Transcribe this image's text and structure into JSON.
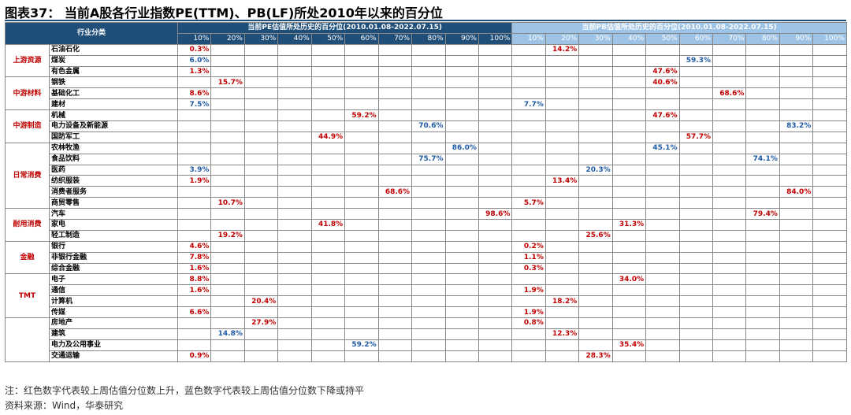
{
  "title": "图表37： 当前A股各行业指数PE(TTM)、PB(LF)所处2010年以来的百分位",
  "header": {
    "category": "行业分类",
    "pe_group": "当前PE估值所处历史的百分位(2010.01.08-2022.07.15)",
    "pb_group": "当前PB估值所处历史的百分位(2010.01.08-2022.07.15)",
    "ticks": [
      "10%",
      "20%",
      "30%",
      "40%",
      "50%",
      "60%",
      "70%",
      "80%",
      "90%",
      "100%"
    ]
  },
  "colors": {
    "increase": "#c00000",
    "decrease": "#1f5aa6",
    "header": "#1f4e79",
    "pb_header": "#9dc3e6"
  },
  "sections": [
    {
      "name": "上游资源",
      "rows": [
        {
          "industry": "石油石化",
          "pe": {
            "value": "0.3%",
            "color": "red"
          },
          "pb": {
            "value": "14.2%",
            "color": "red"
          }
        },
        {
          "industry": "煤炭",
          "pe": {
            "value": "6.0%",
            "color": "blue"
          },
          "pb": {
            "value": "59.3%",
            "color": "blue"
          }
        },
        {
          "industry": "有色金属",
          "pe": {
            "value": "1.3%",
            "color": "red"
          },
          "pb": {
            "value": "47.6%",
            "color": "red"
          }
        }
      ]
    },
    {
      "name": "中游材料",
      "rows": [
        {
          "industry": "钢铁",
          "pe": {
            "value": "15.7%",
            "color": "red"
          },
          "pb": {
            "value": "40.6%",
            "color": "red"
          }
        },
        {
          "industry": "基础化工",
          "pe": {
            "value": "8.6%",
            "color": "red"
          },
          "pb": {
            "value": "68.6%",
            "color": "red"
          }
        },
        {
          "industry": "建材",
          "pe": {
            "value": "7.5%",
            "color": "blue"
          },
          "pb": {
            "value": "7.7%",
            "color": "blue"
          }
        }
      ]
    },
    {
      "name": "中游制造",
      "rows": [
        {
          "industry": "机械",
          "pe": {
            "value": "59.2%",
            "color": "red"
          },
          "pb": {
            "value": "47.6%",
            "color": "red"
          }
        },
        {
          "industry": "电力设备及新能源",
          "pe": {
            "value": "70.6%",
            "color": "blue"
          },
          "pb": {
            "value": "83.2%",
            "color": "blue"
          }
        },
        {
          "industry": "国防军工",
          "pe": {
            "value": "44.9%",
            "color": "red"
          },
          "pb": {
            "value": "57.7%",
            "color": "red"
          }
        }
      ]
    },
    {
      "name": "日常消费",
      "rows": [
        {
          "industry": "农林牧渔",
          "pe": {
            "value": "86.0%",
            "color": "blue"
          },
          "pb": {
            "value": "45.1%",
            "color": "blue"
          }
        },
        {
          "industry": "食品饮料",
          "pe": {
            "value": "75.7%",
            "color": "blue"
          },
          "pb": {
            "value": "74.1%",
            "color": "blue"
          }
        },
        {
          "industry": "医药",
          "pe": {
            "value": "3.9%",
            "color": "blue"
          },
          "pb": {
            "value": "20.3%",
            "color": "blue"
          }
        },
        {
          "industry": "纺织服装",
          "pe": {
            "value": "1.9%",
            "color": "red"
          },
          "pb": {
            "value": "13.4%",
            "color": "red"
          }
        },
        {
          "industry": "消费者服务",
          "pe": {
            "value": "68.6%",
            "color": "red"
          },
          "pb": {
            "value": "84.0%",
            "color": "red"
          }
        },
        {
          "industry": "商贸零售",
          "pe": {
            "value": "10.7%",
            "color": "red"
          },
          "pb": {
            "value": "5.7%",
            "color": "red"
          }
        }
      ]
    },
    {
      "name": "耐用消费",
      "rows": [
        {
          "industry": "汽车",
          "pe": {
            "value": "98.6%",
            "color": "red"
          },
          "pb": {
            "value": "79.4%",
            "color": "red"
          }
        },
        {
          "industry": "家电",
          "pe": {
            "value": "41.8%",
            "color": "red"
          },
          "pb": {
            "value": "31.3%",
            "color": "red"
          }
        },
        {
          "industry": "轻工制造",
          "pe": {
            "value": "19.2%",
            "color": "red"
          },
          "pb": {
            "value": "25.6%",
            "color": "red"
          }
        }
      ]
    },
    {
      "name": "金融",
      "rows": [
        {
          "industry": "银行",
          "pe": {
            "value": "4.6%",
            "color": "red"
          },
          "pb": {
            "value": "0.2%",
            "color": "red"
          }
        },
        {
          "industry": "非银行金融",
          "pe": {
            "value": "7.8%",
            "color": "red"
          },
          "pb": {
            "value": "1.1%",
            "color": "red"
          }
        },
        {
          "industry": "综合金融",
          "pe": {
            "value": "1.6%",
            "color": "red"
          },
          "pb": {
            "value": "0.3%",
            "color": "red"
          }
        }
      ]
    },
    {
      "name": "TMT",
      "rows": [
        {
          "industry": "电子",
          "pe": {
            "value": "8.8%",
            "color": "red"
          },
          "pb": {
            "value": "34.0%",
            "color": "red"
          }
        },
        {
          "industry": "通信",
          "pe": {
            "value": "1.6%",
            "color": "red"
          },
          "pb": {
            "value": "1.9%",
            "color": "red"
          }
        },
        {
          "industry": "计算机",
          "pe": {
            "value": "20.4%",
            "color": "red"
          },
          "pb": {
            "value": "18.2%",
            "color": "red"
          }
        },
        {
          "industry": "传媒",
          "pe": {
            "value": "6.6%",
            "color": "red"
          },
          "pb": {
            "value": "1.9%",
            "color": "red"
          }
        }
      ]
    },
    {
      "name": "",
      "rows": [
        {
          "industry": "房地产",
          "pe": {
            "value": "27.9%",
            "color": "red"
          },
          "pb": {
            "value": "0.8%",
            "color": "red"
          }
        },
        {
          "industry": "建筑",
          "pe": {
            "value": "14.8%",
            "color": "blue"
          },
          "pb": {
            "value": "12.3%",
            "color": "red"
          }
        },
        {
          "industry": "电力及公用事业",
          "pe": {
            "value": "59.2%",
            "color": "blue"
          },
          "pb": {
            "value": "35.4%",
            "color": "red"
          }
        },
        {
          "industry": "交通运输",
          "pe": {
            "value": "0.9%",
            "color": "red"
          },
          "pb": {
            "value": "28.3%",
            "color": "red"
          }
        }
      ]
    }
  ],
  "notes": {
    "note": "注：红色数字代表较上周估值分位数上升，蓝色数字代表较上周估值分位数下降或持平",
    "source": "资料来源：Wind，华泰研究"
  }
}
